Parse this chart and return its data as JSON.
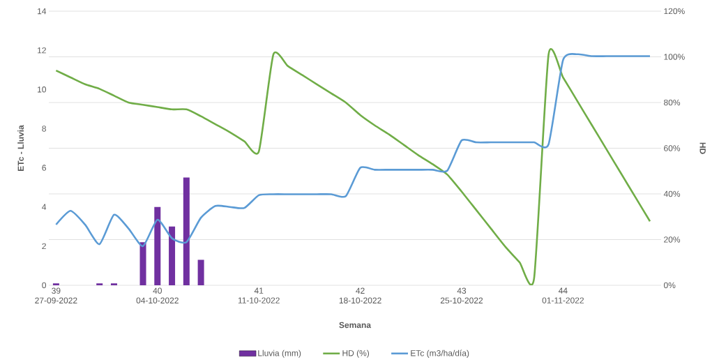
{
  "chart_data": {
    "type": "bar",
    "xlabel": "Semana",
    "ylabel": "ETc - Lluvia",
    "y2label": "HD",
    "categories": [
      "39 27-09-2022",
      null,
      null,
      null,
      null,
      null,
      null,
      "40 04-10-2022",
      null,
      null,
      null,
      null,
      null,
      null,
      "41 11-10-2022",
      null,
      null,
      null,
      null,
      null,
      null,
      "42 18-10-2022",
      null,
      null,
      null,
      null,
      null,
      null,
      "43 25-10-2022",
      null,
      null,
      null,
      null,
      null,
      null,
      "44 01-11-2022",
      null,
      null,
      null,
      null,
      null,
      null
    ],
    "ylim": [
      0,
      14
    ],
    "yticks": [
      0,
      2,
      4,
      6,
      8,
      10,
      12,
      14
    ],
    "y2lim": [
      0,
      120
    ],
    "y2ticks": [
      {
        "value": 0,
        "label": "0%"
      },
      {
        "value": 20,
        "label": "20%"
      },
      {
        "value": 40,
        "label": "40%"
      },
      {
        "value": 60,
        "label": "60%"
      },
      {
        "value": 80,
        "label": "80%"
      },
      {
        "value": 100,
        "label": "100%"
      },
      {
        "value": 120,
        "label": "120%"
      }
    ],
    "grid": "y2",
    "legend": "bottom",
    "series": [
      {
        "name": "Lluvia (mm)",
        "color": "#7030a0",
        "values": [
          0.1,
          null,
          null,
          0.1,
          0.1,
          null,
          2.2,
          4.0,
          3.0,
          5.5,
          1.3,
          null,
          null,
          null,
          null,
          null,
          null,
          null,
          null,
          null,
          null,
          null,
          null,
          null,
          null,
          null,
          null,
          null,
          null,
          null,
          null,
          null,
          null,
          null,
          null,
          null,
          null,
          null,
          null,
          null,
          null,
          null
        ]
      },
      {
        "name": "HD (%)",
        "type": "line",
        "axis": "y2",
        "color": "#70ad47",
        "values": [
          94,
          91,
          88,
          86,
          83,
          80,
          79,
          78,
          77,
          77,
          74,
          70.5,
          67,
          63,
          58.6,
          101,
          96,
          92,
          88,
          84,
          80,
          74.5,
          70,
          66,
          61.5,
          57,
          53,
          48.5,
          41,
          33,
          25,
          17,
          10,
          3,
          101,
          91,
          80.5,
          70,
          59.5,
          49,
          38.5,
          28
        ]
      },
      {
        "name": "ETc (m3/ha/día)",
        "type": "line",
        "color": "#5b9bd5",
        "values": [
          3.1,
          3.8,
          3.1,
          2.1,
          3.6,
          2.9,
          2.0,
          3.35,
          2.4,
          2.2,
          3.45,
          4.05,
          4.0,
          3.95,
          4.6,
          4.65,
          4.65,
          4.65,
          4.65,
          4.65,
          4.55,
          6.0,
          5.9,
          5.9,
          5.9,
          5.9,
          5.9,
          5.85,
          7.4,
          7.3,
          7.3,
          7.3,
          7.3,
          7.3,
          7.2,
          11.5,
          11.8,
          11.7,
          11.7,
          11.7,
          11.7,
          11.7
        ]
      }
    ]
  }
}
